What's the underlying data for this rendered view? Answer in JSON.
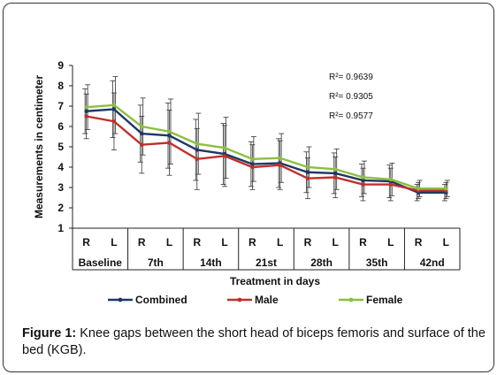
{
  "chart_data": {
    "type": "line",
    "ylabel": "Measurements in centimeter",
    "xlabel": "Treatment in days",
    "ylim": [
      1,
      9
    ],
    "yticks": [
      1,
      2,
      3,
      4,
      5,
      6,
      7,
      8,
      9
    ],
    "sides": [
      "R",
      "L",
      "R",
      "L",
      "R",
      "L",
      "R",
      "L",
      "R",
      "L",
      "R",
      "L",
      "R",
      "L"
    ],
    "groups": [
      "Baseline",
      "7th",
      "14th",
      "21st",
      "28th",
      "35th",
      "42nd"
    ],
    "series": [
      {
        "name": "Combined",
        "color": "#1f3864",
        "values": [
          6.75,
          6.85,
          5.65,
          5.55,
          4.85,
          4.65,
          4.15,
          4.2,
          3.75,
          3.7,
          3.35,
          3.3,
          2.75,
          2.75
        ],
        "err": [
          1.1,
          1.4,
          1.4,
          1.6,
          1.5,
          1.5,
          1.1,
          1.2,
          1.0,
          1.0,
          0.8,
          0.8,
          0.4,
          0.4
        ]
      },
      {
        "name": "Male",
        "color": "#c0302b",
        "values": [
          6.5,
          6.25,
          5.1,
          5.2,
          4.4,
          4.55,
          4.0,
          4.1,
          3.45,
          3.5,
          3.15,
          3.15,
          2.85,
          2.85
        ],
        "err": [
          1.1,
          1.4,
          1.4,
          1.6,
          1.5,
          1.5,
          1.1,
          1.2,
          1.0,
          1.0,
          0.8,
          0.8,
          0.4,
          0.4
        ]
      },
      {
        "name": "Female",
        "color": "#8cbf3f",
        "values": [
          6.95,
          7.05,
          6.0,
          5.75,
          5.15,
          4.95,
          4.4,
          4.45,
          4.0,
          3.9,
          3.5,
          3.4,
          2.95,
          2.95
        ],
        "err": [
          1.1,
          1.4,
          1.4,
          1.6,
          1.5,
          1.5,
          1.1,
          1.2,
          1.0,
          1.0,
          0.8,
          0.8,
          0.4,
          0.4
        ]
      }
    ],
    "r_squared": [
      "R²= 0.9639",
      "R²= 0.9305",
      "R²= 0.9577"
    ],
    "legend_position": "bottom",
    "grid": false
  },
  "caption": {
    "label": "Figure 1:",
    "text": " Knee gaps between the short head of biceps femoris and surface of the bed (KGB)."
  }
}
